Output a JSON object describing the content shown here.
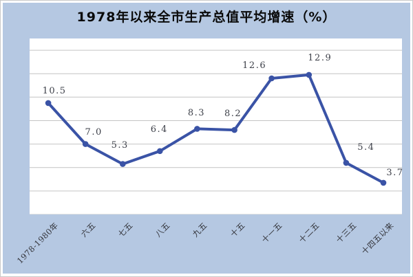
{
  "title": "1978年以来全市生产总值平均增速（%）",
  "colors": {
    "background": "#b5c8e2",
    "plot_bg": "#ffffff",
    "line": "#3a53a6",
    "marker": "#3a53a6",
    "gridline": "#c4c4c4",
    "title_text": "#0a0a0a",
    "label_text": "#3d4049",
    "axis_text": "#33343a",
    "frame_border": "#c9c9c9"
  },
  "chart_data": {
    "type": "line",
    "title": "1978年以来全市生产总值平均增速（%）",
    "categories": [
      "1978-1980年",
      "六五",
      "七五",
      "八五",
      "九五",
      "十五",
      "十一五",
      "十二五",
      "十三五",
      "十四五以来"
    ],
    "values": [
      10.5,
      7.0,
      5.3,
      6.4,
      8.3,
      8.2,
      12.6,
      12.9,
      5.4,
      3.7
    ],
    "value_labels": [
      "10.5",
      "7.0",
      "5.3",
      "6.4",
      "8.3",
      "8.2",
      "12.6",
      "12.9",
      "5.4",
      "3.7"
    ],
    "xlabel": "",
    "ylabel": "",
    "ylim": [
      1,
      16
    ],
    "y_gridline_step": 2,
    "grid": "horizontal-only",
    "y_axis_labels_visible": false,
    "legend": "none",
    "data_labels": "above",
    "x_tick_rotation": 45
  }
}
